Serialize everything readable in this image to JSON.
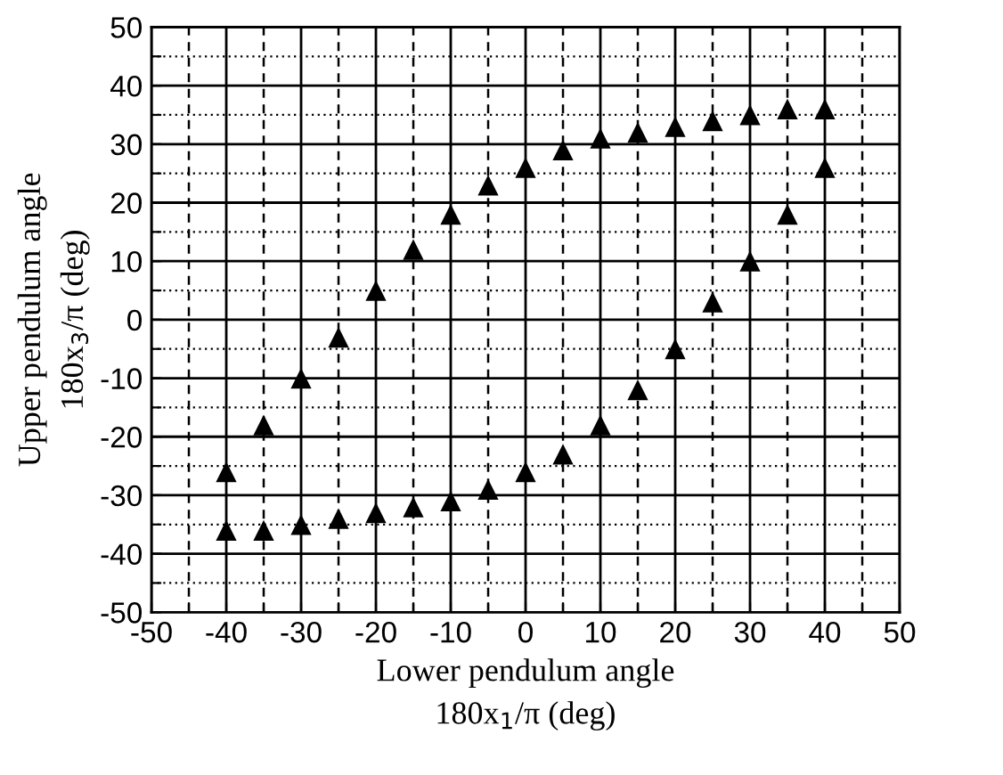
{
  "chart_data": {
    "type": "scatter",
    "xlabel": "Lower pendulum angle\n180x$_{1}$/π (deg)",
    "ylabel": "Upper pendulum angle\n180x$_{3}$/π (deg)",
    "series": [
      {
        "color": "#000000",
        "x": [
          -40,
          -35,
          -30,
          -25,
          -20,
          -15,
          -10,
          -5,
          0,
          5,
          10,
          15,
          20,
          25,
          30,
          35,
          40
        ],
        "values": [
          -26,
          -18,
          -10,
          -3,
          5,
          12,
          18,
          23,
          26,
          29,
          31,
          32,
          33,
          34,
          35,
          36,
          36
        ]
      },
      {
        "color": "#000000",
        "x": [
          -40,
          -35,
          -30,
          -25,
          -20,
          -15,
          -10,
          -5,
          0,
          5,
          10,
          15,
          20,
          25,
          30,
          35,
          40
        ],
        "values": [
          -36,
          -36,
          -35,
          -34,
          -33,
          -32,
          -31,
          -29,
          -26,
          -23,
          -18,
          -12,
          -5,
          3,
          10,
          18,
          26
        ]
      }
    ],
    "marker": "triangle",
    "grid": true,
    "xlim": [
      -50,
      50
    ],
    "ylim": [
      -50,
      50
    ],
    "xticks": [
      -50,
      {
        "value": -45,
        "label": null
      },
      -40,
      {
        "value": -35,
        "label": null
      },
      -30,
      {
        "value": -25,
        "label": null
      },
      -20,
      {
        "value": -15,
        "label": null
      },
      -10,
      {
        "value": -5,
        "label": null
      },
      0,
      {
        "value": 5,
        "label": null
      },
      10,
      {
        "value": 15,
        "label": null
      },
      20,
      {
        "value": 25,
        "label": null
      },
      30,
      {
        "value": 35,
        "label": null
      },
      40,
      {
        "value": 45,
        "label": null
      },
      50
    ],
    "yticks": [
      -50,
      {
        "value": -45,
        "label": null
      },
      -40,
      {
        "value": -35,
        "label": null
      },
      -30,
      {
        "value": -25,
        "label": null
      },
      -20,
      {
        "value": -15,
        "label": null
      },
      -10,
      {
        "value": -5,
        "label": null
      },
      0,
      {
        "value": 5,
        "label": null
      },
      10,
      {
        "value": 15,
        "label": null
      },
      20,
      {
        "value": 25,
        "label": null
      },
      30,
      {
        "value": 35,
        "label": null
      },
      40,
      {
        "value": 45,
        "label": null
      },
      50
    ]
  }
}
